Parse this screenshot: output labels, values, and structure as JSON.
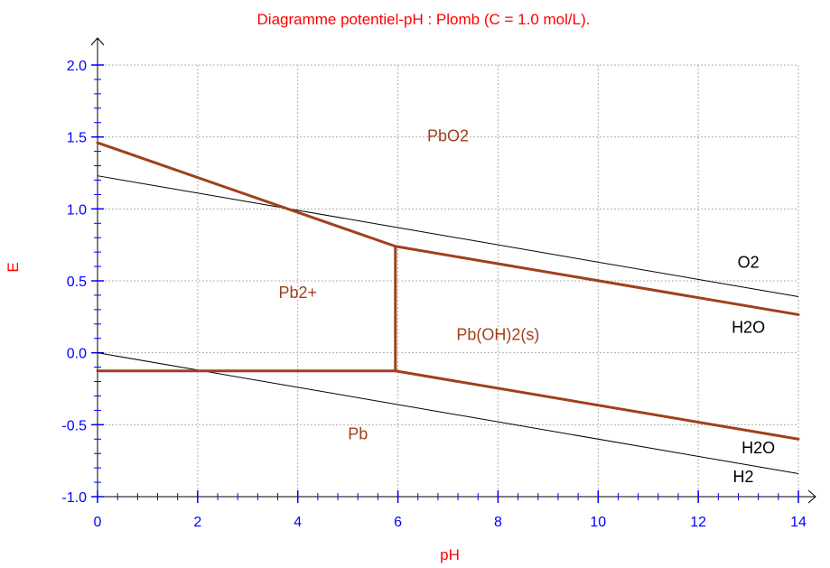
{
  "chart_data": {
    "type": "line",
    "title": "Diagramme potentiel-pH : Plomb (C = 1.0 mol/L).",
    "xlabel": "pH",
    "ylabel": "E",
    "xlim": [
      0,
      14
    ],
    "ylim": [
      -1.0,
      2.0
    ],
    "x_ticks": [
      {
        "value": 0,
        "label": "0"
      },
      {
        "value": 2,
        "label": "2"
      },
      {
        "value": 4,
        "label": "4"
      },
      {
        "value": 6,
        "label": "6"
      },
      {
        "value": 8,
        "label": "8"
      },
      {
        "value": 10,
        "label": "10"
      },
      {
        "value": 12,
        "label": "12"
      },
      {
        "value": 14,
        "label": "14"
      }
    ],
    "y_ticks": [
      {
        "value": -1.0,
        "label": "-1.0"
      },
      {
        "value": -0.5,
        "label": "-0.5"
      },
      {
        "value": 0.0,
        "label": "0.0"
      },
      {
        "value": 0.5,
        "label": "0.5"
      },
      {
        "value": 1.0,
        "label": "1.0"
      },
      {
        "value": 1.5,
        "label": "1.5"
      },
      {
        "value": 2.0,
        "label": "2.0"
      }
    ],
    "grid": true,
    "colors": {
      "boundary": "#a0401c",
      "water": "#000000",
      "grid": "#b0b0b0",
      "ticks": "#0000ff",
      "title": "#ff0000"
    },
    "boundary_lines": [
      {
        "x": [
          0,
          5.95
        ],
        "y": [
          1.46,
          0.74
        ]
      },
      {
        "x": [
          5.95,
          14
        ],
        "y": [
          0.74,
          0.265
        ]
      },
      {
        "x": [
          5.95,
          5.95
        ],
        "y": [
          0.74,
          -0.126
        ]
      },
      {
        "x": [
          0,
          5.95
        ],
        "y": [
          -0.126,
          -0.126
        ]
      },
      {
        "x": [
          5.95,
          14
        ],
        "y": [
          -0.126,
          -0.6
        ]
      }
    ],
    "water_lines": [
      {
        "x": [
          0,
          14
        ],
        "y": [
          1.23,
          0.39
        ]
      },
      {
        "x": [
          0,
          14
        ],
        "y": [
          0.0,
          -0.84
        ]
      }
    ],
    "region_labels": [
      {
        "text": "PbO2",
        "x": 7.0,
        "y": 1.47
      },
      {
        "text": "Pb2+",
        "x": 4.0,
        "y": 0.38
      },
      {
        "text": "Pb(OH)2(s)",
        "x": 8.0,
        "y": 0.09
      },
      {
        "text": "Pb",
        "x": 5.2,
        "y": -0.6
      }
    ],
    "water_labels": [
      {
        "text": "O2",
        "x": 13.0,
        "y": 0.59
      },
      {
        "text": "H2O",
        "x": 13.0,
        "y": 0.14
      },
      {
        "text": "H2O",
        "x": 13.2,
        "y": -0.7
      },
      {
        "text": "H2",
        "x": 12.9,
        "y": -0.9
      }
    ]
  }
}
